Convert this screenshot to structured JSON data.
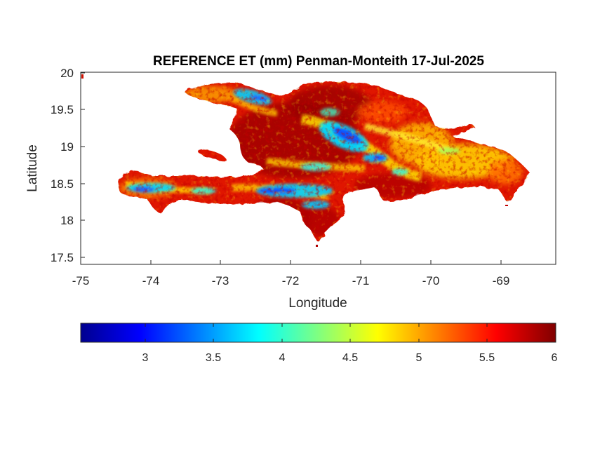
{
  "map": {
    "title": "REFERENCE ET (mm) Penman-Monteith 17-Jul-2025",
    "xlabel": "Longitude",
    "ylabel": "Latitude",
    "xticks": [
      "-75",
      "-74",
      "-73",
      "-72",
      "-71",
      "-70",
      "-69"
    ],
    "yticks": [
      "20",
      "19.5",
      "19",
      "18.5",
      "18",
      "17.5"
    ],
    "xlim": [
      -75,
      -68.22
    ],
    "ylim": [
      17.41,
      20.03
    ],
    "region": "Hispaniola",
    "colormap": "jet"
  },
  "colorbar": {
    "ticks": [
      "3",
      "3.5",
      "4",
      "4.5",
      "5",
      "5.5",
      "6"
    ],
    "range": [
      2.53,
      6
    ],
    "colors": [
      "#00008f",
      "#0000ff",
      "#0080ff",
      "#00ffff",
      "#80ff80",
      "#ffff00",
      "#ff8000",
      "#ff0000",
      "#800000"
    ]
  }
}
